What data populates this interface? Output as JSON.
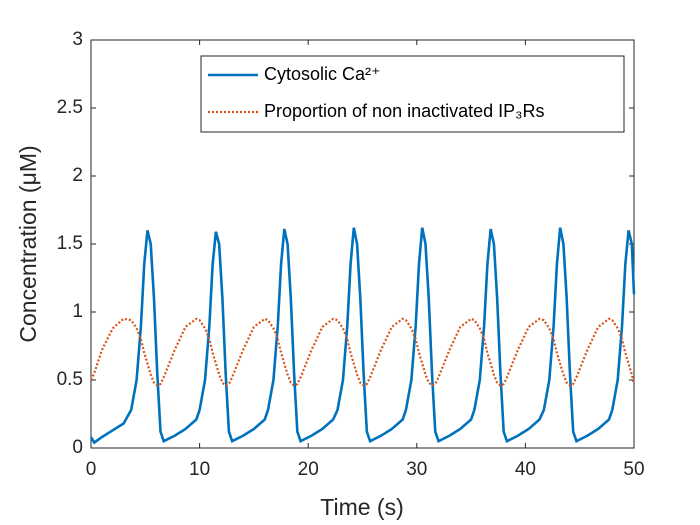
{
  "chart_data": {
    "type": "line",
    "xlabel": "Time (s)",
    "ylabel": "Concentration (μM)",
    "x": [
      0,
      0.3,
      1,
      2,
      3,
      3.7,
      4.2,
      4.6,
      4.9,
      5.2,
      5.5,
      5.8,
      6.1,
      6.4,
      6.7,
      7.7,
      8.7,
      9.7,
      10,
      10.5,
      10.9,
      11.2,
      11.5,
      11.8,
      12.1,
      12.4,
      12.7,
      13,
      14,
      15,
      16,
      16.3,
      16.8,
      17.2,
      17.5,
      17.8,
      18.1,
      18.4,
      18.7,
      19,
      19.3,
      20.3,
      21.3,
      22.3,
      22.7,
      23.2,
      23.6,
      23.9,
      24.2,
      24.5,
      24.8,
      25.1,
      25.4,
      25.7,
      26.7,
      27.7,
      28.7,
      29,
      29.5,
      29.9,
      30.2,
      30.5,
      30.8,
      31.1,
      31.4,
      31.7,
      32,
      33,
      34,
      35,
      35.3,
      35.8,
      36.2,
      36.5,
      36.8,
      37.1,
      37.4,
      37.7,
      38,
      38.3,
      39.3,
      40.3,
      41.3,
      41.7,
      42.2,
      42.6,
      42.9,
      43.2,
      43.5,
      43.8,
      44.1,
      44.4,
      44.7,
      45.7,
      46.7,
      47.7,
      48,
      48.5,
      48.9,
      49.2,
      49.5,
      49.8,
      50
    ],
    "series": [
      {
        "name": "Cytosolic Ca²⁺",
        "color": "#0072bd",
        "style": "solid",
        "values": [
          0.08,
          0.04,
          0.08,
          0.13,
          0.18,
          0.28,
          0.5,
          0.9,
          1.35,
          1.6,
          1.5,
          1.1,
          0.55,
          0.12,
          0.05,
          0.09,
          0.14,
          0.21,
          0.28,
          0.5,
          0.9,
          1.35,
          1.59,
          1.5,
          1.1,
          0.55,
          0.12,
          0.05,
          0.09,
          0.14,
          0.21,
          0.28,
          0.5,
          0.9,
          1.35,
          1.61,
          1.5,
          1.1,
          0.55,
          0.12,
          0.05,
          0.09,
          0.14,
          0.21,
          0.28,
          0.5,
          0.9,
          1.35,
          1.62,
          1.5,
          1.1,
          0.55,
          0.12,
          0.05,
          0.09,
          0.14,
          0.21,
          0.28,
          0.5,
          0.9,
          1.35,
          1.62,
          1.5,
          1.1,
          0.55,
          0.12,
          0.05,
          0.09,
          0.14,
          0.21,
          0.28,
          0.5,
          0.9,
          1.35,
          1.61,
          1.5,
          1.1,
          0.55,
          0.12,
          0.05,
          0.09,
          0.14,
          0.21,
          0.28,
          0.5,
          0.9,
          1.35,
          1.62,
          1.5,
          1.1,
          0.55,
          0.12,
          0.05,
          0.09,
          0.14,
          0.21,
          0.28,
          0.5,
          0.9,
          1.35,
          1.6,
          1.5,
          1.13
        ]
      },
      {
        "name": "Proportion of non inactivated IP₃Rs",
        "color": "#d95319",
        "style": "dotted",
        "values": [
          0.5,
          0.55,
          0.72,
          0.88,
          0.95,
          0.94,
          0.88,
          0.8,
          0.7,
          0.62,
          0.54,
          0.48,
          0.46,
          0.47,
          0.52,
          0.72,
          0.89,
          0.95,
          0.94,
          0.88,
          0.8,
          0.7,
          0.62,
          0.54,
          0.48,
          0.46,
          0.47,
          0.52,
          0.72,
          0.89,
          0.95,
          0.94,
          0.88,
          0.8,
          0.7,
          0.62,
          0.54,
          0.48,
          0.46,
          0.47,
          0.52,
          0.72,
          0.89,
          0.95,
          0.94,
          0.88,
          0.8,
          0.7,
          0.62,
          0.54,
          0.48,
          0.46,
          0.47,
          0.52,
          0.72,
          0.89,
          0.95,
          0.94,
          0.88,
          0.8,
          0.7,
          0.62,
          0.54,
          0.48,
          0.46,
          0.47,
          0.52,
          0.72,
          0.89,
          0.95,
          0.94,
          0.88,
          0.8,
          0.7,
          0.62,
          0.54,
          0.48,
          0.46,
          0.47,
          0.52,
          0.72,
          0.89,
          0.95,
          0.94,
          0.88,
          0.8,
          0.7,
          0.62,
          0.54,
          0.48,
          0.46,
          0.47,
          0.52,
          0.72,
          0.89,
          0.95,
          0.94,
          0.88,
          0.8,
          0.7,
          0.62,
          0.54,
          0.47
        ]
      }
    ],
    "xlim": [
      0,
      50
    ],
    "xticks": [
      0,
      10,
      20,
      30,
      40,
      50
    ],
    "ylim": [
      0,
      3
    ],
    "yticks": [
      0,
      0.5,
      1,
      1.5,
      2,
      2.5,
      3
    ],
    "grid": false,
    "legend": "north-east"
  }
}
